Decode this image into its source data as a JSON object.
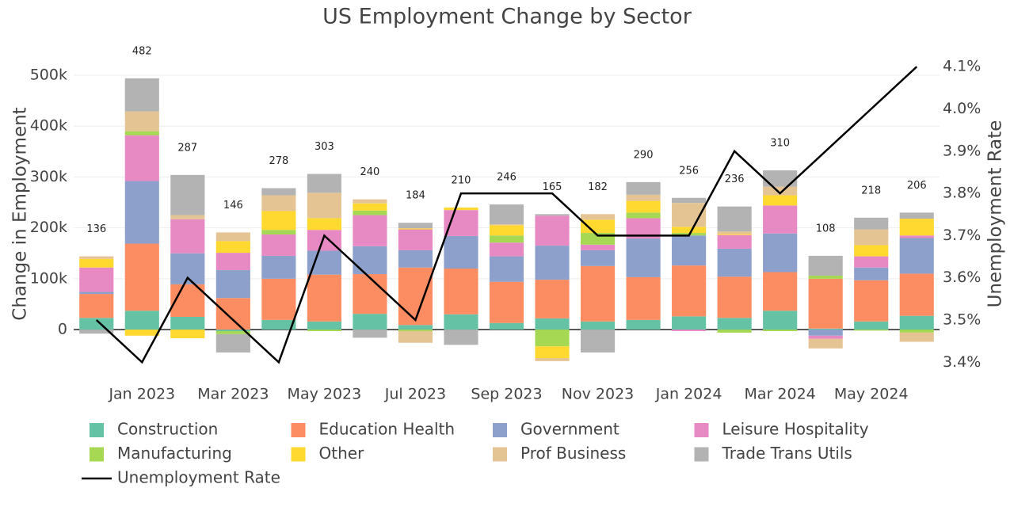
{
  "chart_data": {
    "type": "bar",
    "barmode": "relative",
    "title": "US Employment Change by Sector",
    "y_label": "Change in Employment",
    "y2_label": "Unemployment Rate",
    "categories": [
      null,
      "Jan 2023",
      null,
      "Mar 2023",
      null,
      "May 2023",
      null,
      "Jul 2023",
      null,
      "Sep 2023",
      null,
      "Nov 2023",
      null,
      "Jan 2024",
      null,
      "Mar 2024",
      null,
      "May 2024",
      null
    ],
    "series": [
      {
        "name": "Construction",
        "color": "#66c2a5",
        "values": [
          23,
          37,
          25,
          -3,
          19,
          16,
          31,
          9,
          30,
          13,
          22,
          16,
          19,
          26,
          23,
          37,
          2,
          16,
          27
        ]
      },
      {
        "name": "Education Health",
        "color": "#fc8d62",
        "values": [
          47,
          132,
          64,
          62,
          81,
          92,
          78,
          113,
          90,
          81,
          76,
          109,
          84,
          100,
          81,
          76,
          98,
          81,
          83
        ]
      },
      {
        "name": "Government",
        "color": "#8da0cb",
        "values": [
          4,
          123,
          61,
          55,
          45,
          47,
          55,
          34,
          64,
          50,
          67,
          31,
          76,
          59,
          55,
          76,
          -12,
          25,
          70
        ]
      },
      {
        "name": "Leisure Hospitality",
        "color": "#e78ac3",
        "values": [
          48,
          90,
          67,
          34,
          42,
          41,
          61,
          41,
          51,
          27,
          59,
          11,
          40,
          -3,
          27,
          55,
          -6,
          22,
          5
        ]
      },
      {
        "name": "Manufacturing",
        "color": "#a6d854",
        "values": [
          0,
          8,
          0,
          -6,
          9,
          -3,
          9,
          -3,
          0,
          14,
          -33,
          23,
          11,
          5,
          -6,
          -3,
          6,
          -2,
          -6
        ]
      },
      {
        "name": "Other",
        "color": "#ffd92f",
        "values": [
          17,
          -12,
          -17,
          23,
          37,
          23,
          14,
          2,
          5,
          20,
          -23,
          26,
          23,
          12,
          2,
          20,
          0,
          22,
          33
        ]
      },
      {
        "name": "Prof Business",
        "color": "#e5c494",
        "values": [
          5,
          39,
          8,
          17,
          31,
          50,
          8,
          -23,
          0,
          2,
          -6,
          11,
          12,
          47,
          5,
          17,
          -19,
          31,
          -18
        ]
      },
      {
        "name": "Trade Trans Utils",
        "color": "#b3b3b3",
        "values": [
          -8,
          65,
          79,
          -36,
          14,
          37,
          -16,
          11,
          -30,
          39,
          3,
          -45,
          25,
          10,
          49,
          32,
          39,
          23,
          12
        ]
      },
      {
        "name": "Unemployment Rate",
        "type": "line",
        "axis": "y2",
        "color": "#000000",
        "values": [
          3.5,
          3.4,
          3.6,
          3.5,
          3.4,
          3.7,
          3.6,
          3.5,
          3.8,
          3.8,
          3.8,
          3.7,
          3.7,
          3.7,
          3.9,
          3.8,
          3.9,
          4.0,
          4.1
        ]
      }
    ],
    "totals": [
      136,
      482,
      287,
      146,
      278,
      303,
      240,
      184,
      210,
      246,
      165,
      182,
      290,
      256,
      236,
      310,
      108,
      218,
      206
    ],
    "ylim": [
      -80,
      560
    ],
    "yticks": [
      0,
      {
        "value": 100,
        "label": "100k"
      },
      {
        "value": 200,
        "label": "200k"
      },
      {
        "value": 300,
        "label": "300k"
      },
      {
        "value": 400,
        "label": "400k"
      },
      {
        "value": 500,
        "label": "500k"
      }
    ],
    "y2lim": [
      3.381,
      4.152
    ],
    "y2ticks": [
      {
        "value": 3.4,
        "label": "3.4%"
      },
      {
        "value": 3.5,
        "label": "3.5%"
      },
      {
        "value": 3.6,
        "label": "3.6%"
      },
      {
        "value": 3.7,
        "label": "3.7%"
      },
      {
        "value": 3.8,
        "label": "3.8%"
      },
      {
        "value": 3.9,
        "label": "3.9%"
      },
      {
        "value": 4.0,
        "label": "4.0%"
      },
      {
        "value": 4.1,
        "label": "4.1%"
      }
    ],
    "grid": true
  }
}
